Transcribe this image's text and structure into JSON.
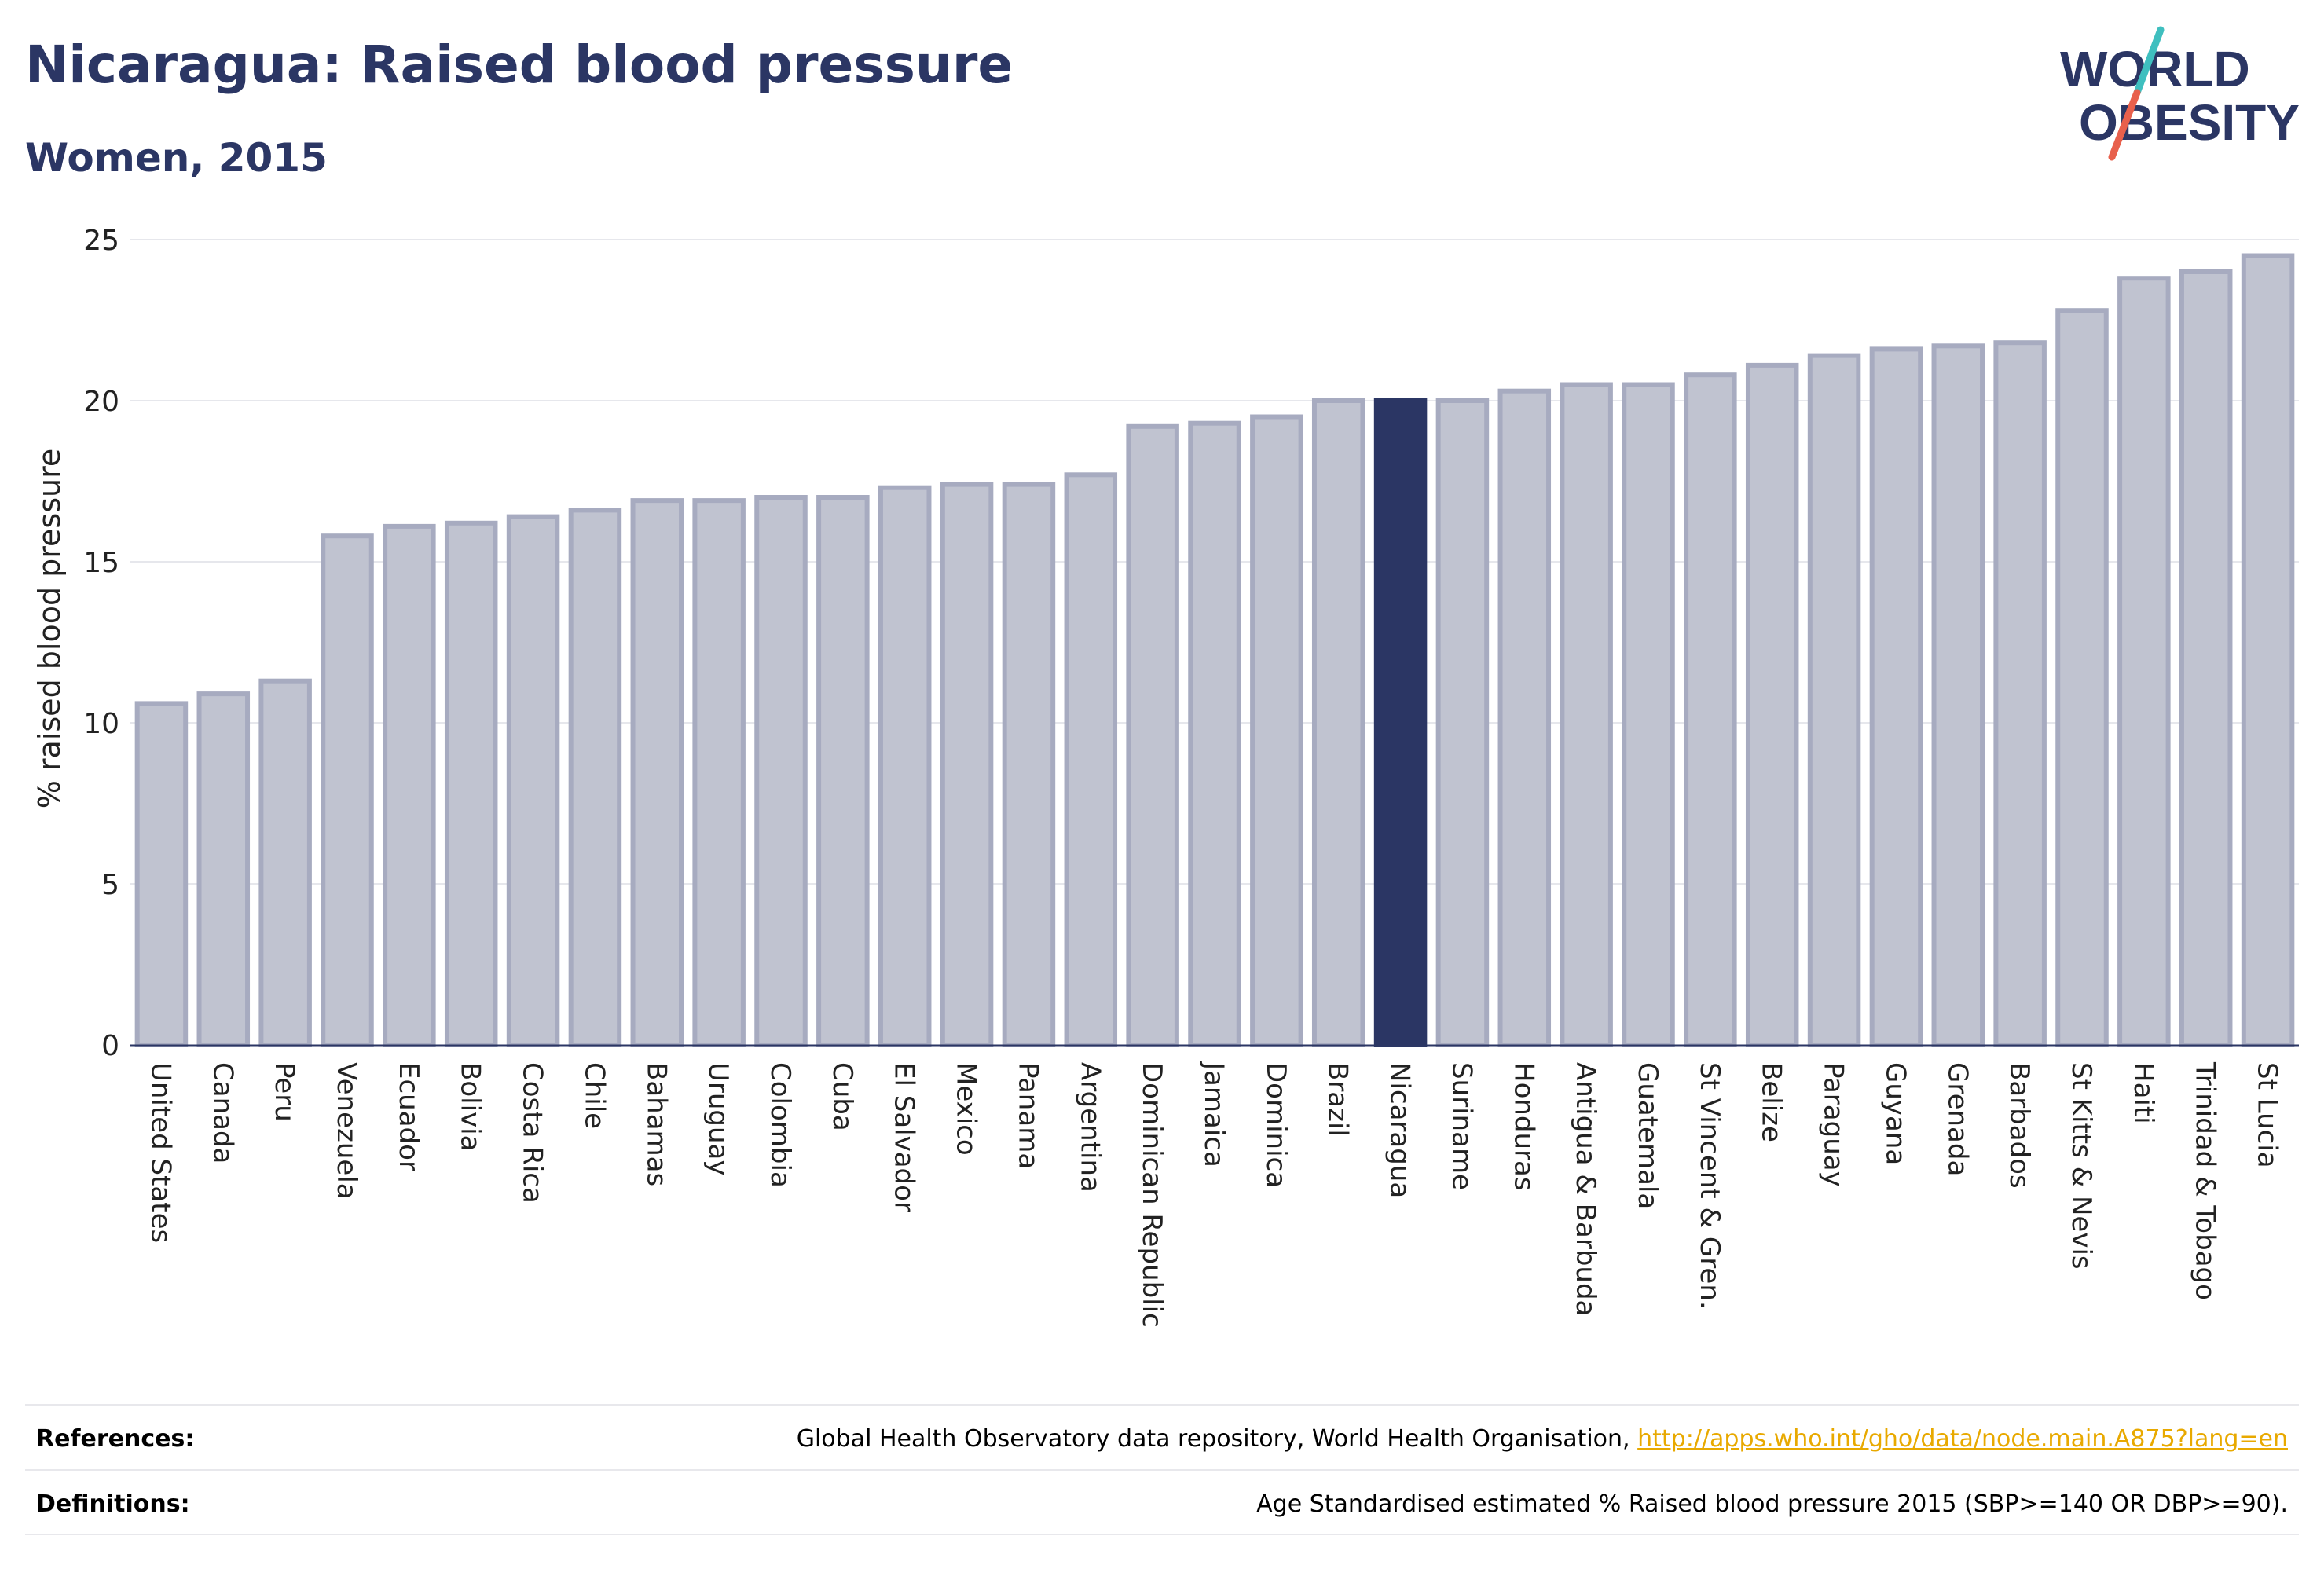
{
  "header": {
    "title": "Nicaragua: Raised blood pressure",
    "subtitle": "Women, 2015"
  },
  "logo": {
    "line1": "WORLD",
    "line2": "OBESITY",
    "colors": {
      "text": "#2b3664",
      "slash_teal": "#3fbfbf",
      "slash_red": "#e8604c"
    }
  },
  "chart_data": {
    "type": "bar",
    "title": "Nicaragua: Raised blood pressure",
    "subtitle": "Women, 2015",
    "ylabel": "% raised blood pressure",
    "xlabel": "",
    "ylim": [
      0,
      25
    ],
    "yticks": [
      0,
      5,
      10,
      15,
      20,
      25
    ],
    "highlight": "Nicaragua",
    "colors": {
      "bar": "#c0c3d0",
      "bar_border": "#a7abc0",
      "highlight": "#2b3664",
      "grid": "#e6e7ec",
      "axis": "#2b3664"
    },
    "categories": [
      "United States",
      "Canada",
      "Peru",
      "Venezuela",
      "Ecuador",
      "Bolivia",
      "Costa Rica",
      "Chile",
      "Bahamas",
      "Uruguay",
      "Colombia",
      "Cuba",
      "El Salvador",
      "Mexico",
      "Panama",
      "Argentina",
      "Dominican Republic",
      "Jamaica",
      "Dominica",
      "Brazil",
      "Nicaragua",
      "Suriname",
      "Honduras",
      "Antigua & Barbuda",
      "Guatemala",
      "St Vincent & Gren.",
      "Belize",
      "Paraguay",
      "Guyana",
      "Grenada",
      "Barbados",
      "St Kitts & Nevis",
      "Haiti",
      "Trinidad & Tobago",
      "St Lucia"
    ],
    "values": [
      10.6,
      10.9,
      11.3,
      15.8,
      16.1,
      16.2,
      16.4,
      16.6,
      16.9,
      16.9,
      17.0,
      17.0,
      17.3,
      17.4,
      17.4,
      17.7,
      19.2,
      19.3,
      19.5,
      20.0,
      20.0,
      20.0,
      20.3,
      20.5,
      20.5,
      20.8,
      21.1,
      21.4,
      21.6,
      21.7,
      21.8,
      22.8,
      23.8,
      24.0,
      24.5
    ]
  },
  "footer": {
    "references_label": "References:",
    "references_text": "Global Health Observatory data repository, World Health Organisation,",
    "references_link": "http://apps.who.int/gho/data/node.main.A875?lang=en",
    "definitions_label": "Definitions:",
    "definitions_text": "Age Standardised estimated % Raised blood pressure 2015 (SBP>=140 OR DBP>=90)."
  }
}
